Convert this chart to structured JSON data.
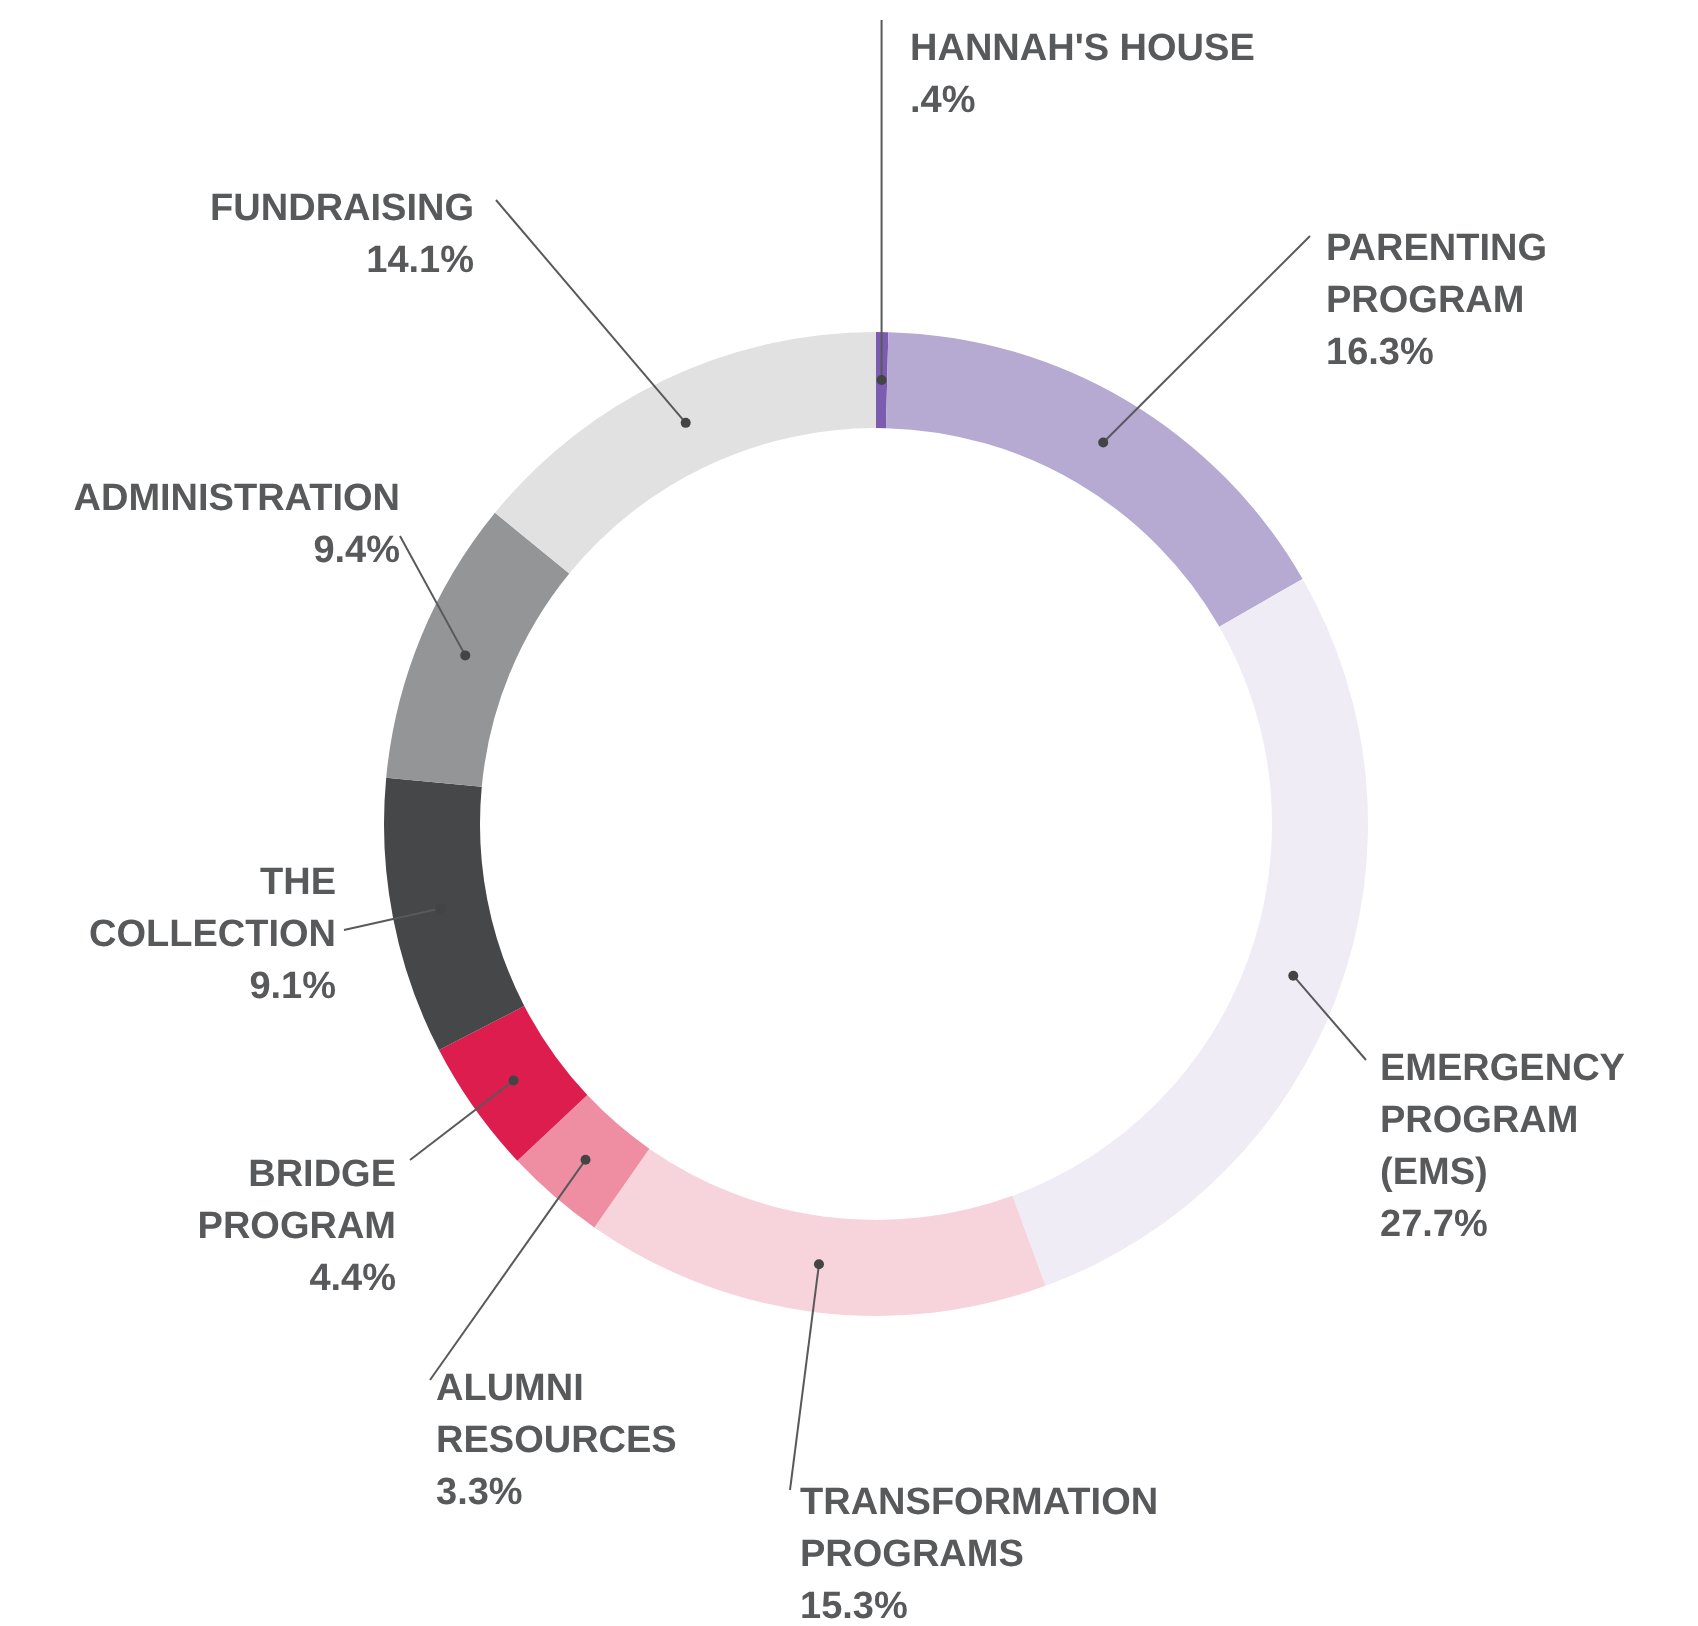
{
  "chart_data": {
    "type": "donut",
    "categories": [
      "HANNAH'S HOUSE",
      "PARENTING PROGRAM",
      "EMERGENCY PROGRAM (EMS)",
      "TRANSFORMATION PROGRAMS",
      "ALUMNI RESOURCES",
      "BRIDGE PROGRAM",
      "THE COLLECTION",
      "ADMINISTRATION",
      "FUNDRAISING"
    ],
    "values": [
      0.4,
      16.3,
      27.7,
      15.3,
      3.3,
      4.4,
      9.1,
      9.4,
      14.1
    ],
    "value_labels": [
      ".4%",
      "16.3%",
      "27.7%",
      "15.3%",
      "3.3%",
      "4.4%",
      "9.1%",
      "9.4%",
      "14.1%"
    ],
    "colors": [
      "#7b5cb0",
      "#b6aad3",
      "#efecf5",
      "#f7d4dc",
      "#ef8ea3",
      "#dc1d4d",
      "#464749",
      "#939597",
      "#e0e1e0"
    ]
  }
}
